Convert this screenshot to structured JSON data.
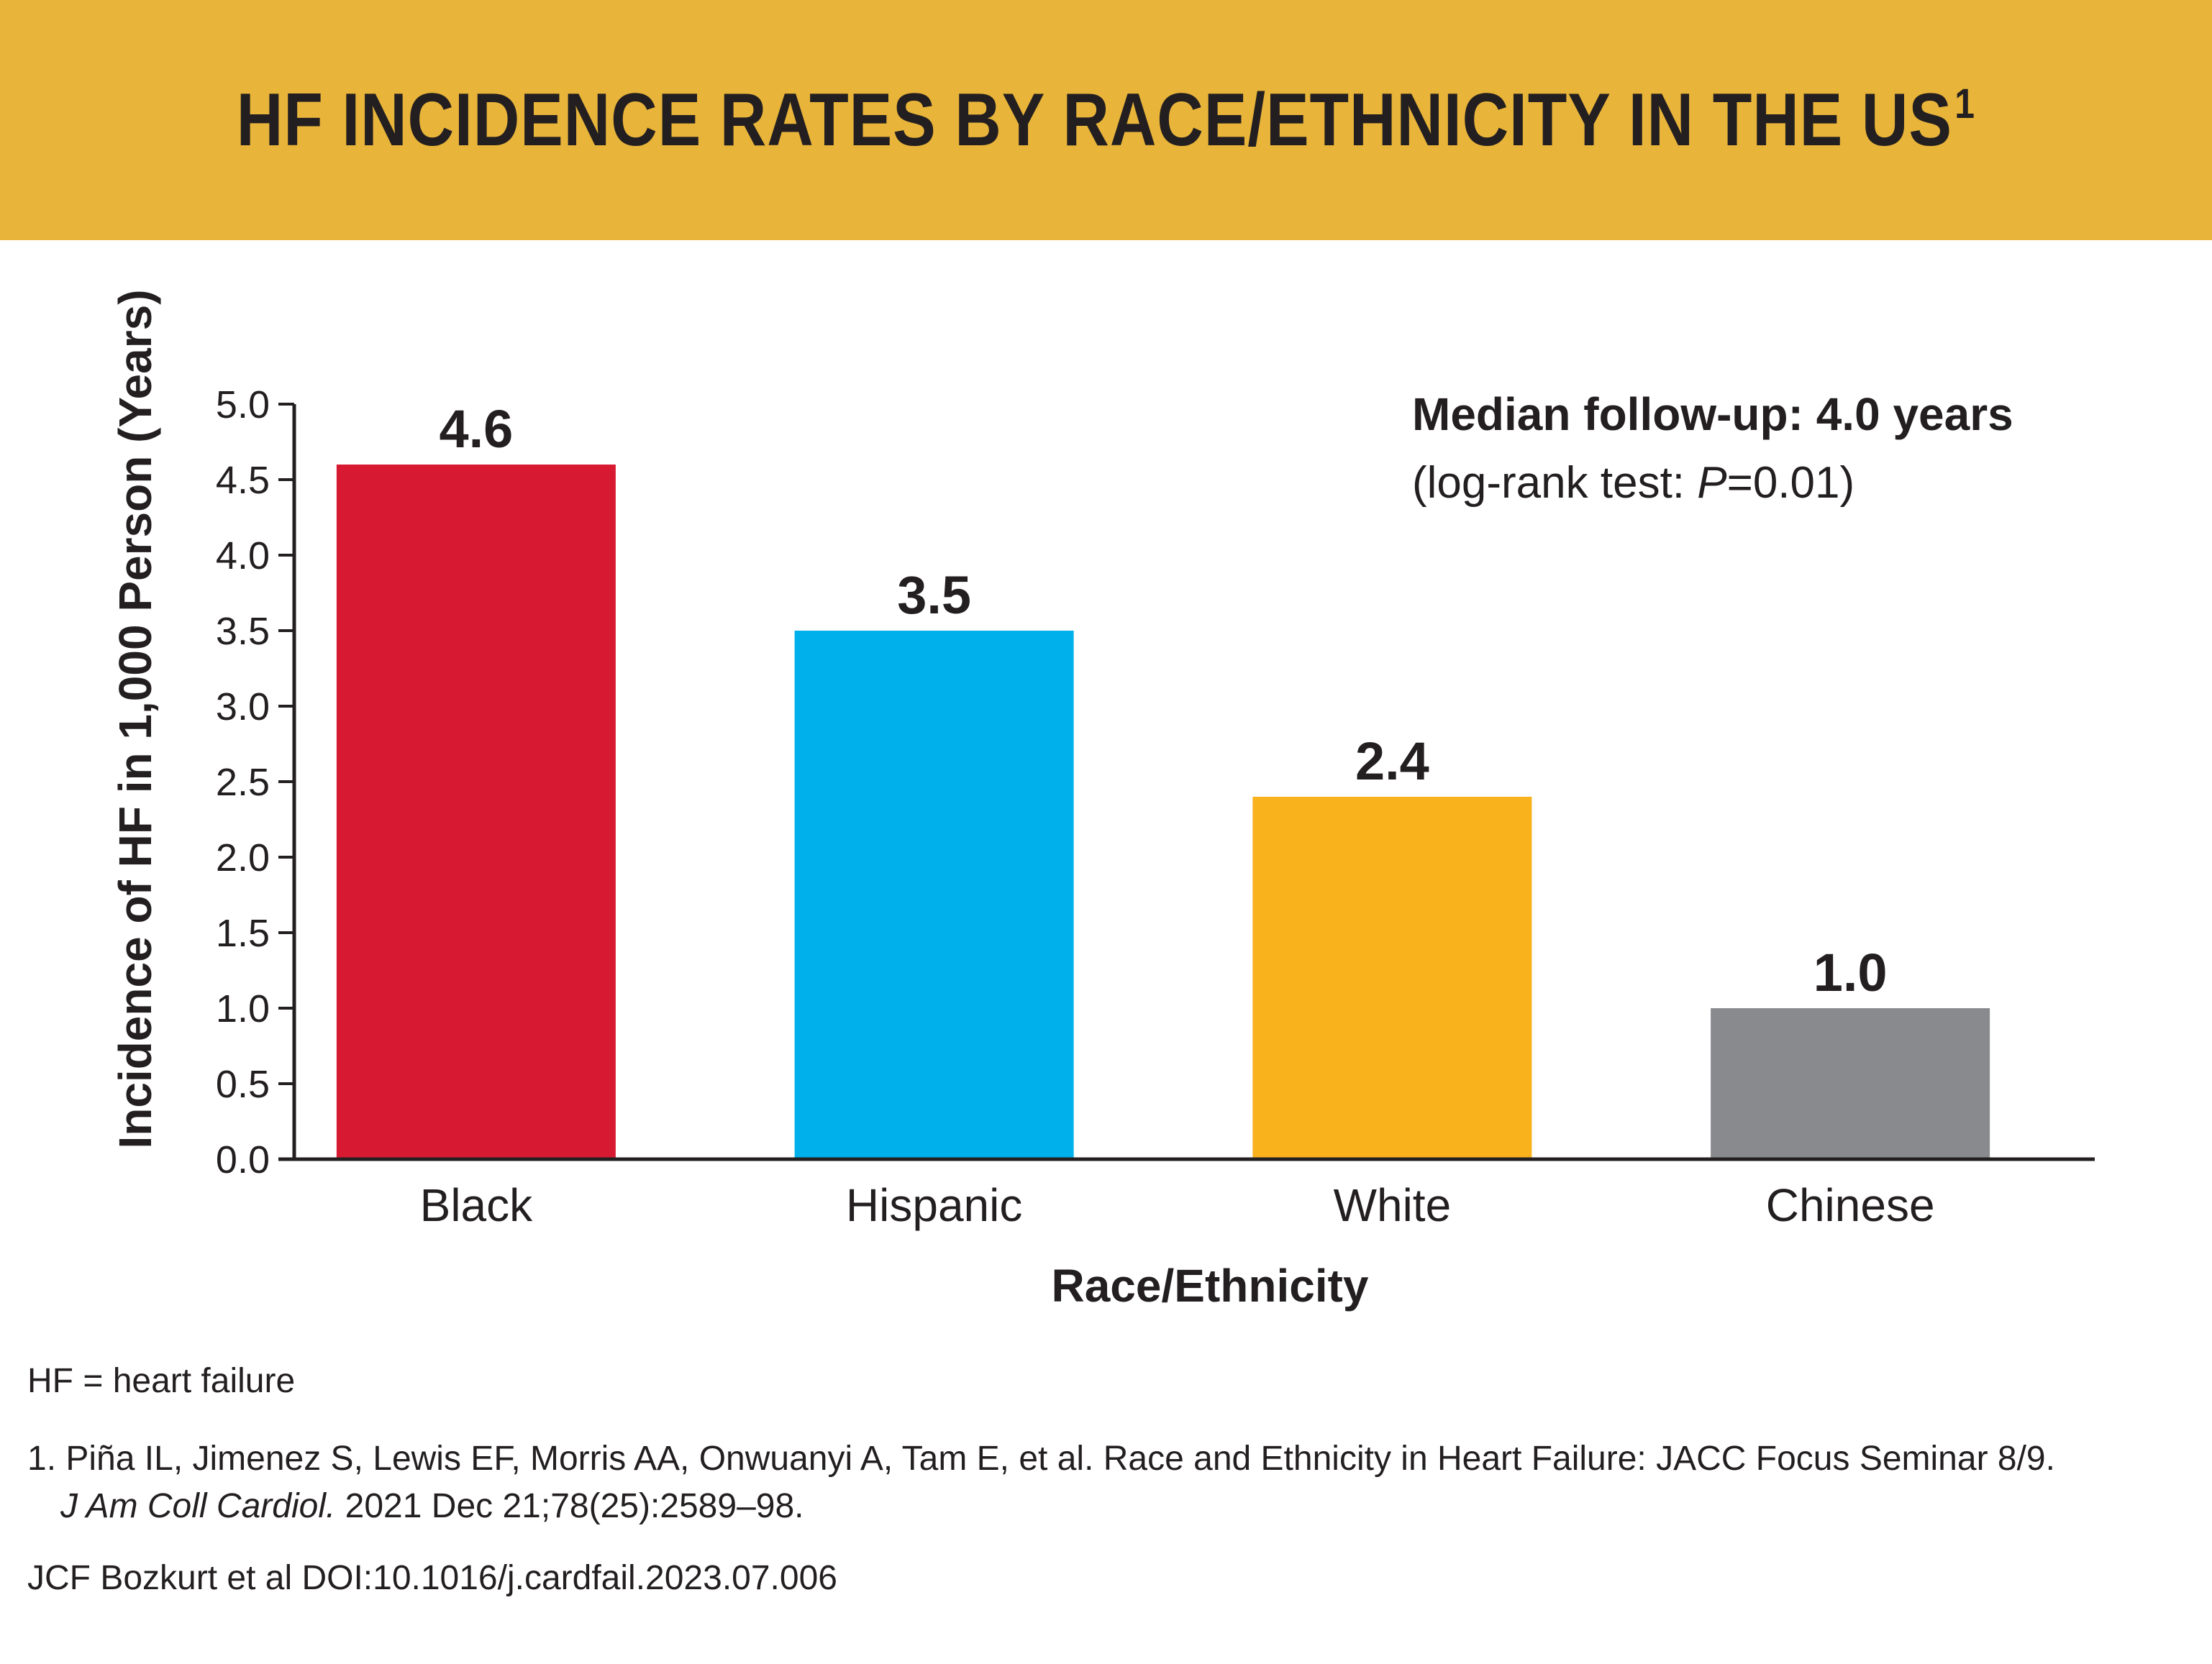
{
  "header": {
    "title": "HF INCIDENCE RATES BY RACE/ETHNICITY IN THE US",
    "superscript": "1",
    "background_color": "#e8b43a"
  },
  "chart_data": {
    "type": "bar",
    "categories": [
      "Black",
      "Hispanic",
      "White",
      "Chinese"
    ],
    "values": [
      4.6,
      3.5,
      2.4,
      1.0
    ],
    "value_labels": [
      "4.6",
      "3.5",
      "2.4",
      "1.0"
    ],
    "colors": [
      "#d71a32",
      "#00b0ea",
      "#f9b11c",
      "#888a8d"
    ],
    "xlabel": "Race/Ethnicity",
    "ylabel": "Incidence of HF in 1,000 Person (Years)",
    "ylim": [
      0,
      5.0
    ],
    "yticks": [
      "0.0",
      "0.5",
      "1.0",
      "1.5",
      "2.0",
      "2.5",
      "3.0",
      "3.5",
      "4.0",
      "4.5",
      "5.0"
    ],
    "grid": false,
    "annotation": {
      "line1": "Median follow-up: 4.0 years",
      "line2_prefix": "(log-rank test: ",
      "line2_italic": "P",
      "line2_suffix": "=0.01)"
    }
  },
  "footnotes": {
    "abbreviation": "HF = heart failure",
    "ref_number": "1.",
    "ref_line1": "Piña IL, Jimenez S, Lewis EF, Morris AA, Onwuanyi A, Tam E, et al. Race and Ethnicity in Heart Failure: JACC Focus Seminar 8/9.",
    "ref_journal": "J Am Coll Cardiol.",
    "ref_details": "2021 Dec 21;78(25):2589–98.",
    "source": "JCF Bozkurt et al DOI:10.1016/j.cardfail.2023.07.006"
  }
}
